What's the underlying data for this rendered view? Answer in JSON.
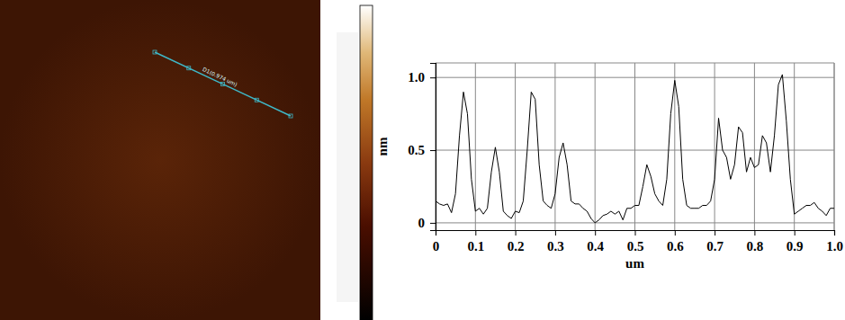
{
  "chart_data": {
    "type": "line",
    "x_label": "um",
    "y_label": "nm",
    "annotations": [
      "D1(0.974 um)"
    ],
    "color": "#000000",
    "grid": true,
    "xlim": [
      0,
      1
    ],
    "xticks": [
      0,
      0.1,
      0.2,
      0.3,
      0.4,
      0.5,
      0.6,
      0.7,
      0.8,
      0.9,
      {
        "value": 1,
        "label": "1.0"
      }
    ],
    "ylim": [
      -0.05,
      1.1
    ],
    "yticks": [
      0,
      0.5,
      {
        "value": 1,
        "label": "1.0"
      }
    ],
    "x": [
      0,
      0.01,
      0.02,
      0.03,
      0.04,
      0.05,
      0.06,
      0.07,
      0.08,
      0.09,
      0.1,
      0.11,
      0.12,
      0.13,
      0.14,
      0.15,
      0.16,
      0.17,
      0.18,
      0.19,
      0.2,
      0.21,
      0.22,
      0.23,
      0.24,
      0.25,
      0.26,
      0.27,
      0.28,
      0.29,
      0.3,
      0.31,
      0.32,
      0.33,
      0.34,
      0.35,
      0.36,
      0.37,
      0.38,
      0.39,
      0.4,
      0.41,
      0.42,
      0.43,
      0.44,
      0.45,
      0.46,
      0.47,
      0.48,
      0.49,
      0.5,
      0.51,
      0.52,
      0.53,
      0.54,
      0.55,
      0.56,
      0.57,
      0.58,
      0.59,
      0.6,
      0.61,
      0.62,
      0.63,
      0.64,
      0.65,
      0.66,
      0.67,
      0.68,
      0.69,
      0.7,
      0.71,
      0.72,
      0.73,
      0.74,
      0.75,
      0.76,
      0.77,
      0.78,
      0.79,
      0.8,
      0.81,
      0.82,
      0.83,
      0.84,
      0.85,
      0.86,
      0.87,
      0.88,
      0.89,
      0.9,
      0.91,
      0.92,
      0.93,
      0.94,
      0.95,
      0.96,
      0.97,
      0.98,
      0.99,
      1
    ],
    "values": [
      0.15,
      0.13,
      0.12,
      0.13,
      0.07,
      0.2,
      0.6,
      0.9,
      0.75,
      0.3,
      0.08,
      0.1,
      0.06,
      0.1,
      0.35,
      0.52,
      0.35,
      0.08,
      0.05,
      0.03,
      0.08,
      0.07,
      0.15,
      0.5,
      0.9,
      0.85,
      0.4,
      0.15,
      0.12,
      0.1,
      0.2,
      0.45,
      0.55,
      0.4,
      0.15,
      0.13,
      0.13,
      0.1,
      0.08,
      0.03,
      0.0,
      0.02,
      0.05,
      0.06,
      0.08,
      0.06,
      0.08,
      0.02,
      0.1,
      0.1,
      0.12,
      0.12,
      0.25,
      0.4,
      0.32,
      0.2,
      0.15,
      0.12,
      0.3,
      0.75,
      0.98,
      0.8,
      0.3,
      0.12,
      0.1,
      0.1,
      0.1,
      0.12,
      0.12,
      0.15,
      0.3,
      0.72,
      0.5,
      0.45,
      0.3,
      0.4,
      0.66,
      0.62,
      0.35,
      0.45,
      0.38,
      0.4,
      0.6,
      0.55,
      0.35,
      0.6,
      0.95,
      1.02,
      0.7,
      0.3,
      0.06,
      0.08,
      0.1,
      0.12,
      0.12,
      0.14,
      0.1,
      0.08,
      0.05,
      0.1,
      0.1
    ]
  }
}
